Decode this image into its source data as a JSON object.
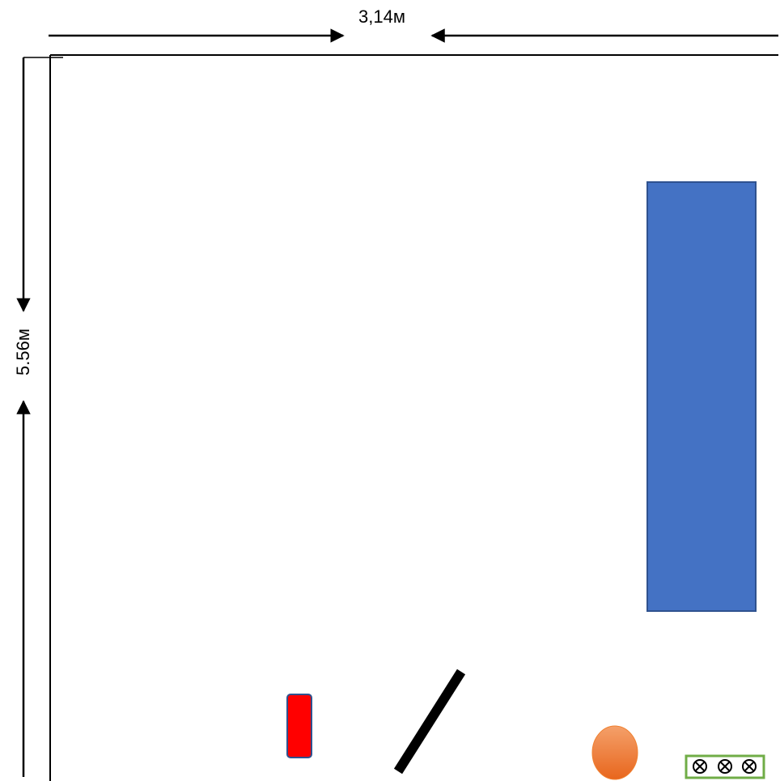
{
  "dimensions": {
    "width_label": "3,14м",
    "height_label": "5.56м"
  },
  "colors": {
    "wall": "#000000",
    "blue_rect_fill": "#4472C4",
    "blue_rect_stroke": "#2F528F",
    "red_rect_fill": "#FF0000",
    "red_rect_stroke": "#2F528F",
    "orange_ellipse_fill": "#ED7D31",
    "orange_ellipse_gradient_light": "#F4A06A",
    "green_box_stroke": "#70AD47",
    "bar_fill": "#000000"
  },
  "fixture_glyphs": "⊗⊗⊗"
}
